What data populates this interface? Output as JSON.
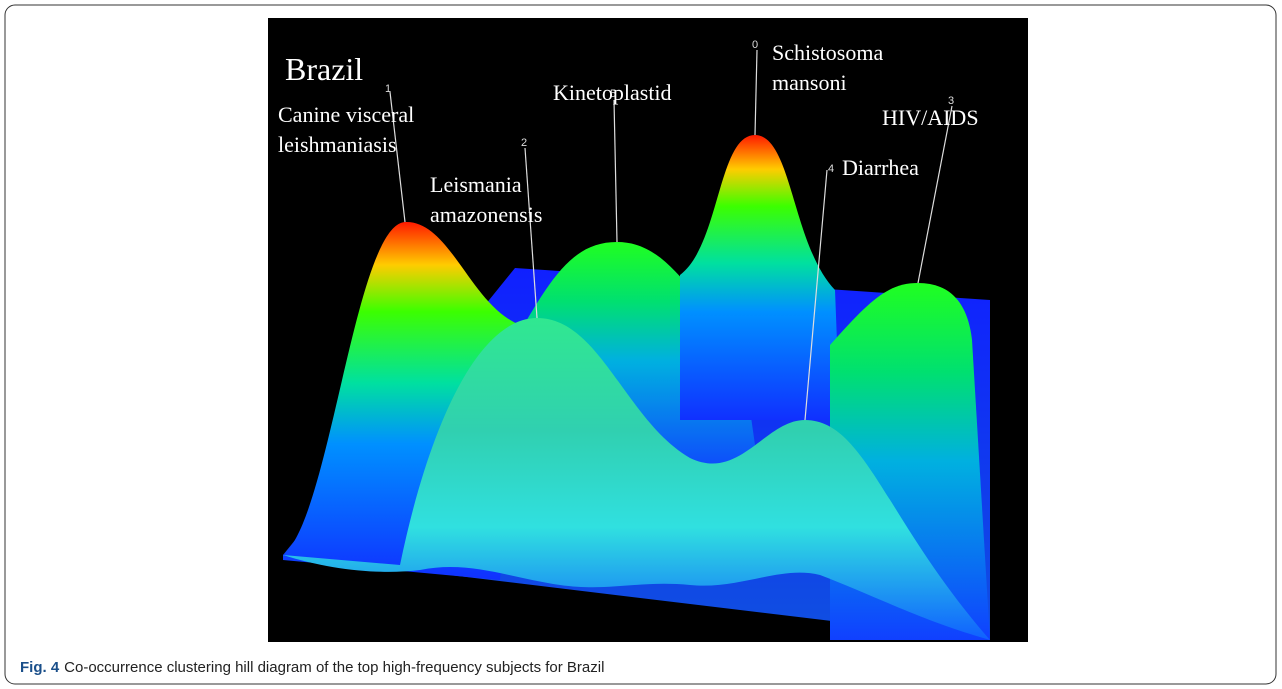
{
  "figure": {
    "title": "Brazil",
    "peaks": [
      {
        "number": "1",
        "label": [
          "Canine visceral",
          "leishmaniasis"
        ]
      },
      {
        "number": "2",
        "label": [
          "Leismania",
          "amazonensis"
        ]
      },
      {
        "number": "5",
        "label": [
          "Kinetoplastid"
        ]
      },
      {
        "number": "0",
        "label": [
          "Schistosoma",
          "mansoni"
        ]
      },
      {
        "number": "4",
        "label": [
          "Diarrhea"
        ]
      },
      {
        "number": "3",
        "label": [
          "HIV/AIDS"
        ]
      }
    ],
    "caption": {
      "number": "Fig. 4",
      "text": "Co-occurrence clustering hill diagram of the top high-frequency subjects for Brazil"
    }
  }
}
